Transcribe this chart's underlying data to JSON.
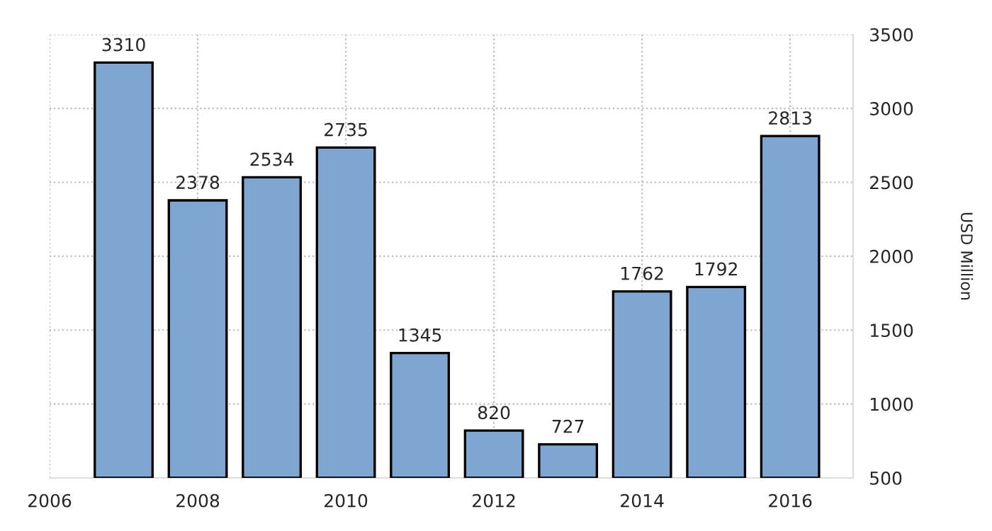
{
  "chart_data": {
    "type": "bar",
    "x": [
      2007,
      2008,
      2009,
      2010,
      2011,
      2012,
      2013,
      2014,
      2015,
      2016
    ],
    "values": [
      3310,
      2378,
      2534,
      2735,
      1345,
      820,
      727,
      1762,
      1792,
      2813
    ],
    "color": "#7fa6d0",
    "data_labels": true,
    "ylabel": "USD Million",
    "xlim": [
      2006,
      2016.85
    ],
    "xticks": [
      2006,
      2008,
      2010,
      2012,
      2014,
      2016
    ],
    "ylim": [
      500,
      3500
    ],
    "yticks": [
      500,
      1000,
      1500,
      2000,
      2500,
      3000,
      3500
    ],
    "grid": true
  }
}
